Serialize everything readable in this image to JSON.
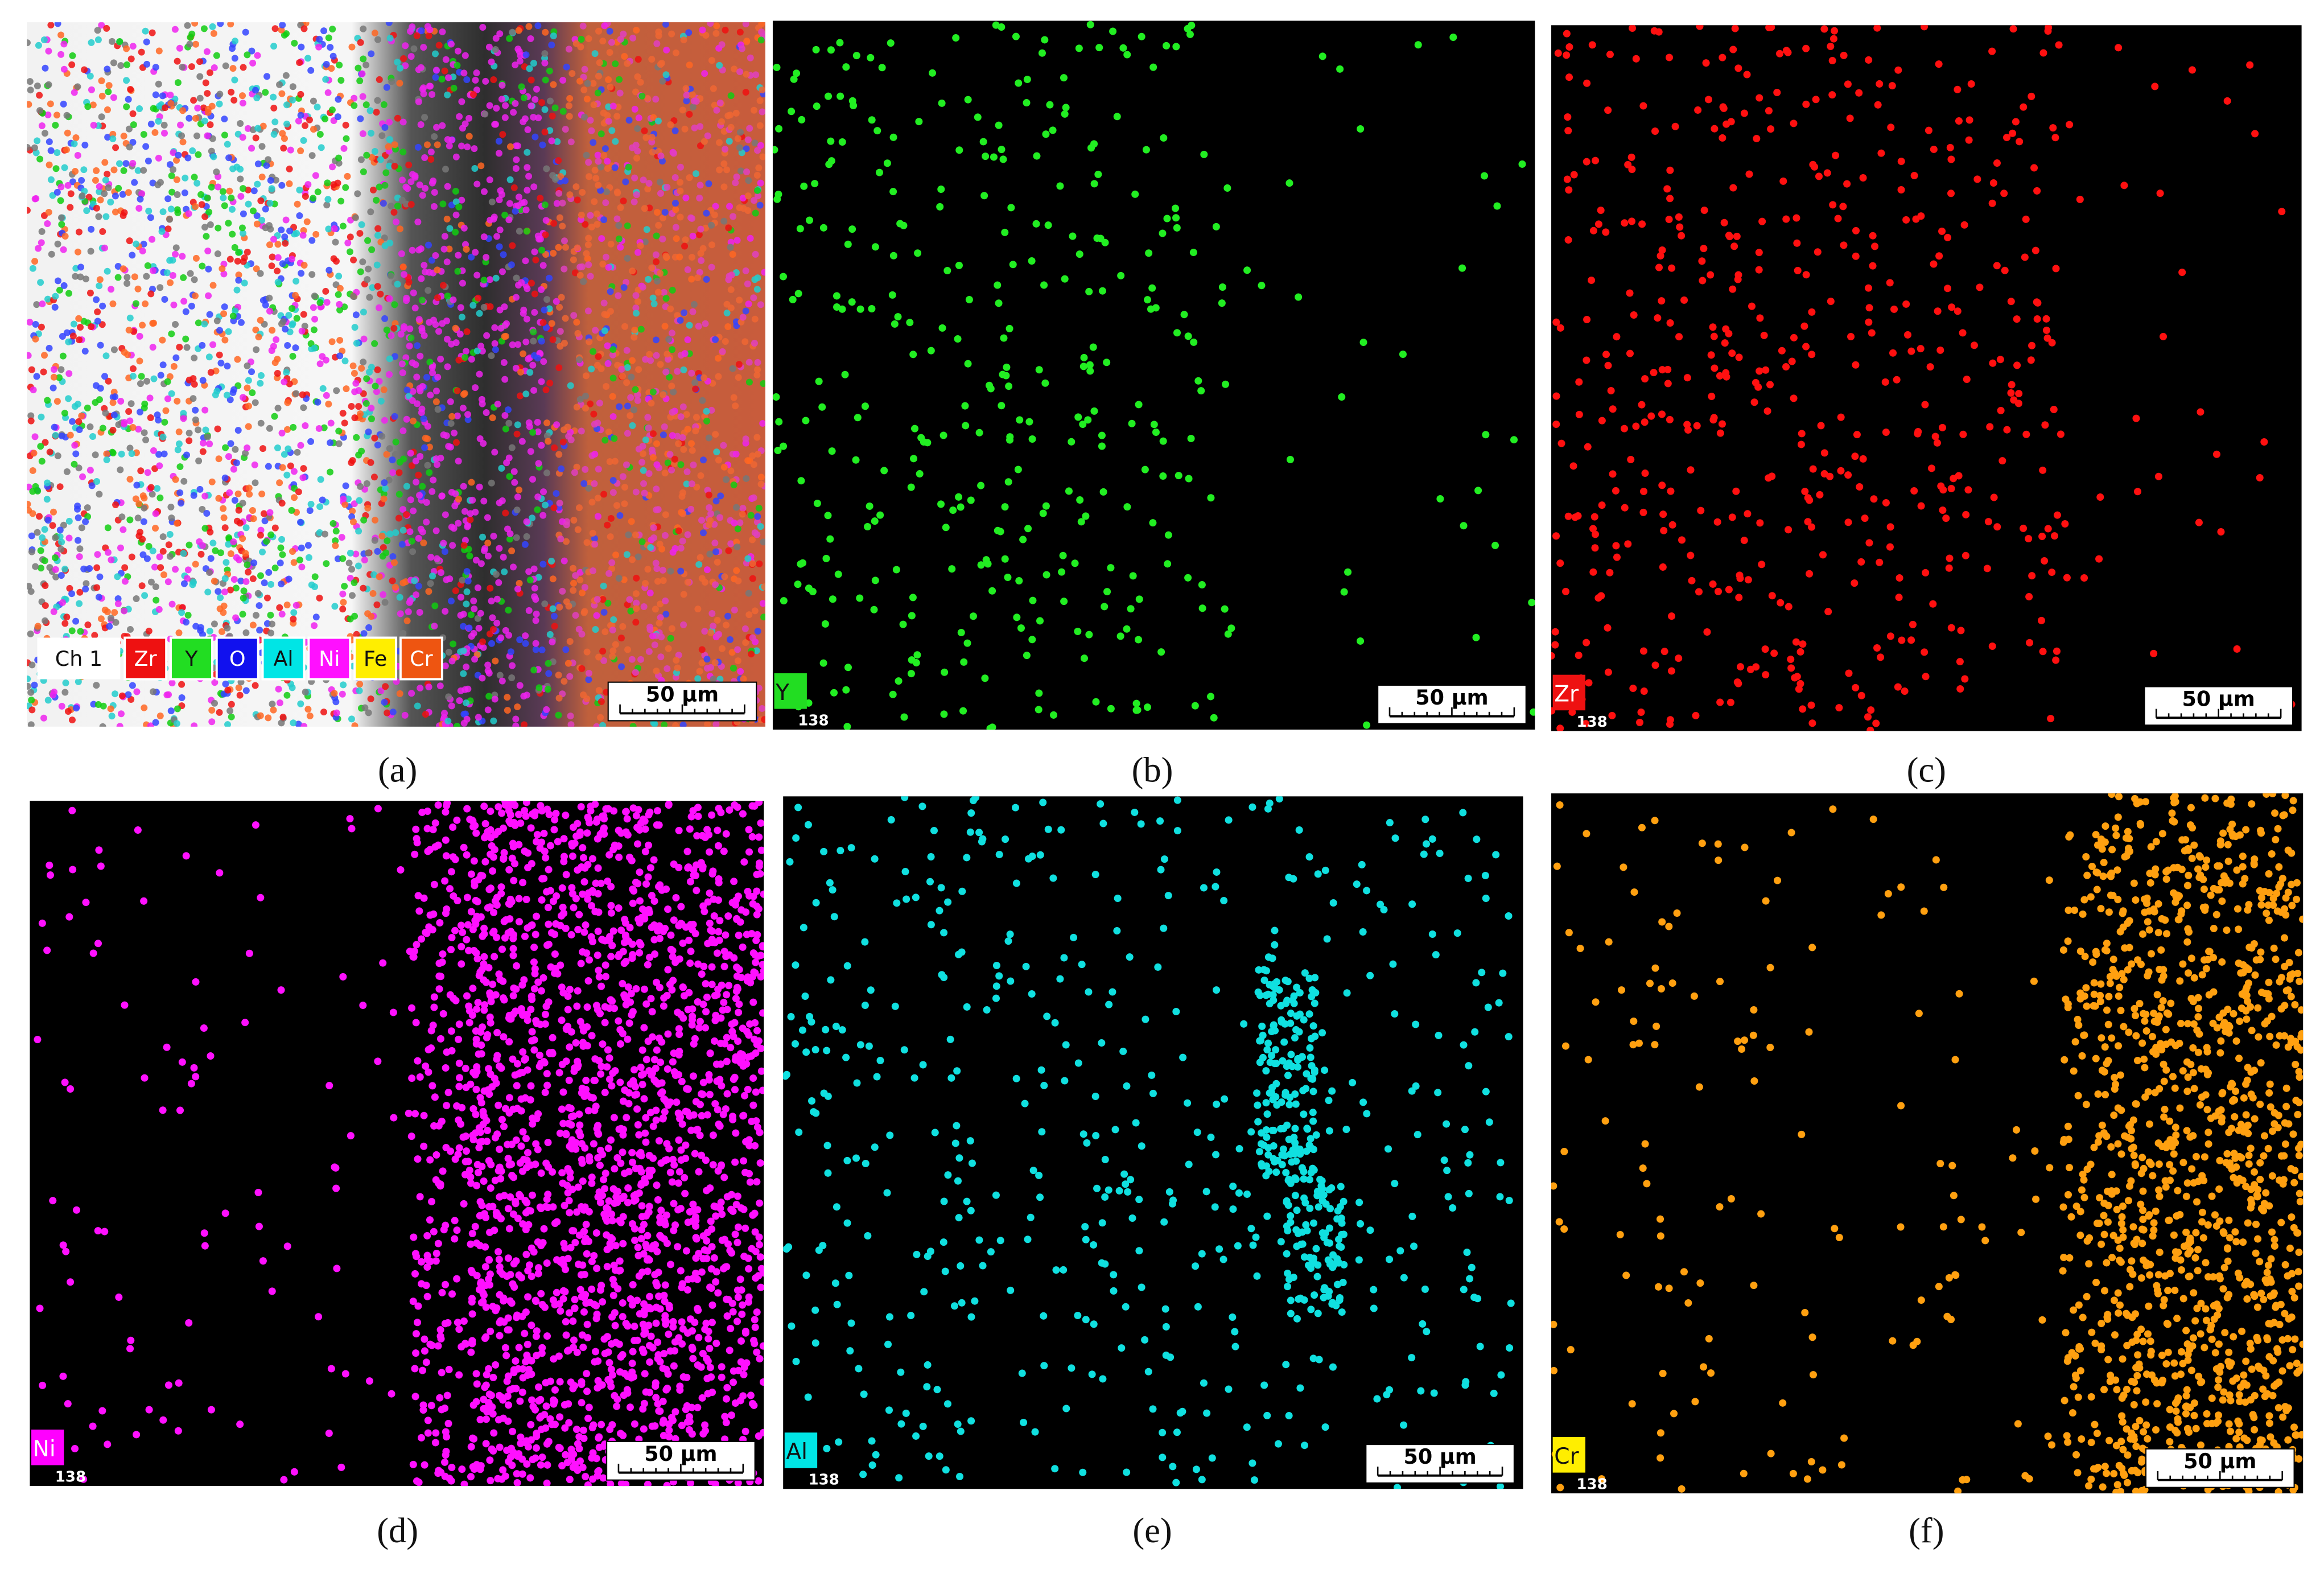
{
  "panels": [
    {
      "caption": "(a)",
      "legend": [
        "Ch 1",
        "Zr",
        "Y",
        "O",
        "Al",
        "Ni",
        "Fe",
        "Cr"
      ],
      "scale_bar": "50 μm"
    },
    {
      "caption": "(b)",
      "element": "Y",
      "counter": "138",
      "scale_bar": "50 μm"
    },
    {
      "caption": "(c)",
      "element": "Zr",
      "counter": "138",
      "scale_bar": "50 μm"
    },
    {
      "caption": "(d)",
      "element": "Ni",
      "counter": "138",
      "scale_bar": "50 μm"
    },
    {
      "caption": "(e)",
      "element": "Al",
      "counter": "138",
      "scale_bar": "50 μm"
    },
    {
      "caption": "(f)",
      "element": "Cr",
      "counter": "138",
      "scale_bar": "50 μm"
    }
  ]
}
